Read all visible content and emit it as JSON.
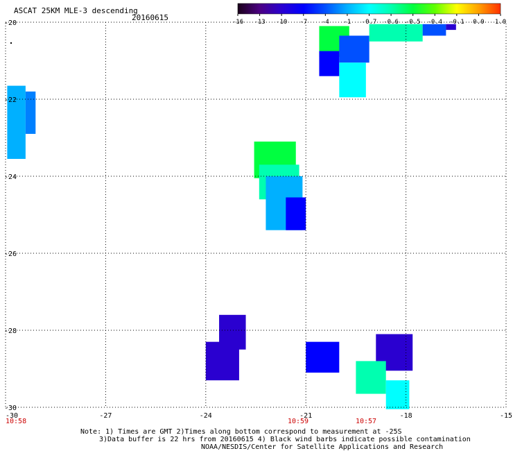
{
  "header": {
    "title": "ASCAT 25KM MLE-3 descending",
    "date": "20160615"
  },
  "colorbar": {
    "labels": [
      "-16",
      "-13",
      "-10",
      "-7",
      "-4",
      "-1",
      "-0.7",
      "-0.6",
      "-0.5",
      "-0.4",
      "-0.1",
      "0.0",
      "1.0"
    ],
    "colors": [
      "#1a001a",
      "#4b0082",
      "#2a00d0",
      "#0000ff",
      "#0050ff",
      "#00b0ff",
      "#00ffff",
      "#00ffb0",
      "#00ff40",
      "#60ff00",
      "#ffff00",
      "#ffa000",
      "#ff3000"
    ]
  },
  "axes": {
    "lat_labels": [
      "-20",
      "-22",
      "-24",
      "-26",
      "-28",
      "-30"
    ],
    "lon_labels": [
      "-30",
      "-27",
      "-24",
      "-21",
      "-18",
      "-15"
    ],
    "lat_range": [
      -30,
      -20
    ],
    "lon_range": [
      -30,
      -15
    ],
    "grid": "dotted"
  },
  "times": [
    "10:58",
    "10:59",
    "10:57"
  ],
  "time_color": "#cc0000",
  "notes": {
    "line1": "Note: 1) Times are GMT 2)Times along bottom correspond to measurement at -25S",
    "line2": "3)Data buffer is 22 hrs from 20160615 4) Black wind barbs indicate possible contamination",
    "line3": "NOAA/NESDIS/Center for Satellite Applications and Research"
  },
  "swath_patches": [
    {
      "lon": [
        -29.95,
        -29.4
      ],
      "lat": [
        -21.65,
        -23.55
      ],
      "color": "#00b0ff"
    },
    {
      "lon": [
        -29.4,
        -29.1
      ],
      "lat": [
        -21.8,
        -22.9
      ],
      "color": "#0080ff"
    },
    {
      "lon": [
        -22.55,
        -21.3
      ],
      "lat": [
        -23.1,
        -24.05
      ],
      "color": "#00ff40"
    },
    {
      "lon": [
        -22.4,
        -21.2
      ],
      "lat": [
        -23.7,
        -24.6
      ],
      "color": "#00ffb0"
    },
    {
      "lon": [
        -22.2,
        -21.1
      ],
      "lat": [
        -24.0,
        -25.4
      ],
      "color": "#00b0ff"
    },
    {
      "lon": [
        -21.6,
        -21.0
      ],
      "lat": [
        -24.55,
        -25.4
      ],
      "color": "#0000ff"
    },
    {
      "lon": [
        -20.6,
        -19.7
      ],
      "lat": [
        -20.1,
        -20.9
      ],
      "color": "#00ff40"
    },
    {
      "lon": [
        -20.6,
        -20.0
      ],
      "lat": [
        -20.75,
        -21.4
      ],
      "color": "#0000ff"
    },
    {
      "lon": [
        -20.0,
        -19.1
      ],
      "lat": [
        -20.35,
        -21.05
      ],
      "color": "#0050ff"
    },
    {
      "lon": [
        -20.0,
        -19.2
      ],
      "lat": [
        -21.05,
        -21.95
      ],
      "color": "#00ffff"
    },
    {
      "lon": [
        -19.1,
        -17.5
      ],
      "lat": [
        -20.05,
        -20.5
      ],
      "color": "#00ffb0"
    },
    {
      "lon": [
        -17.5,
        -16.8
      ],
      "lat": [
        -20.05,
        -20.35
      ],
      "color": "#0050ff"
    },
    {
      "lon": [
        -16.8,
        -16.5
      ],
      "lat": [
        -20.05,
        -20.2
      ],
      "color": "#2a00d0"
    },
    {
      "lon": [
        -23.6,
        -22.8
      ],
      "lat": [
        -27.6,
        -28.5
      ],
      "color": "#2a00d0"
    },
    {
      "lon": [
        -24.0,
        -23.0
      ],
      "lat": [
        -28.3,
        -29.3
      ],
      "color": "#2a00d0"
    },
    {
      "lon": [
        -21.0,
        -20.0
      ],
      "lat": [
        -28.3,
        -29.1
      ],
      "color": "#0000ff"
    },
    {
      "lon": [
        -18.9,
        -17.8
      ],
      "lat": [
        -28.1,
        -29.05
      ],
      "color": "#2a00d0"
    },
    {
      "lon": [
        -19.5,
        -18.6
      ],
      "lat": [
        -28.8,
        -29.65
      ],
      "color": "#00ffb0"
    },
    {
      "lon": [
        -18.6,
        -17.9
      ],
      "lat": [
        -29.3,
        -30.05
      ],
      "color": "#00ffff"
    }
  ]
}
